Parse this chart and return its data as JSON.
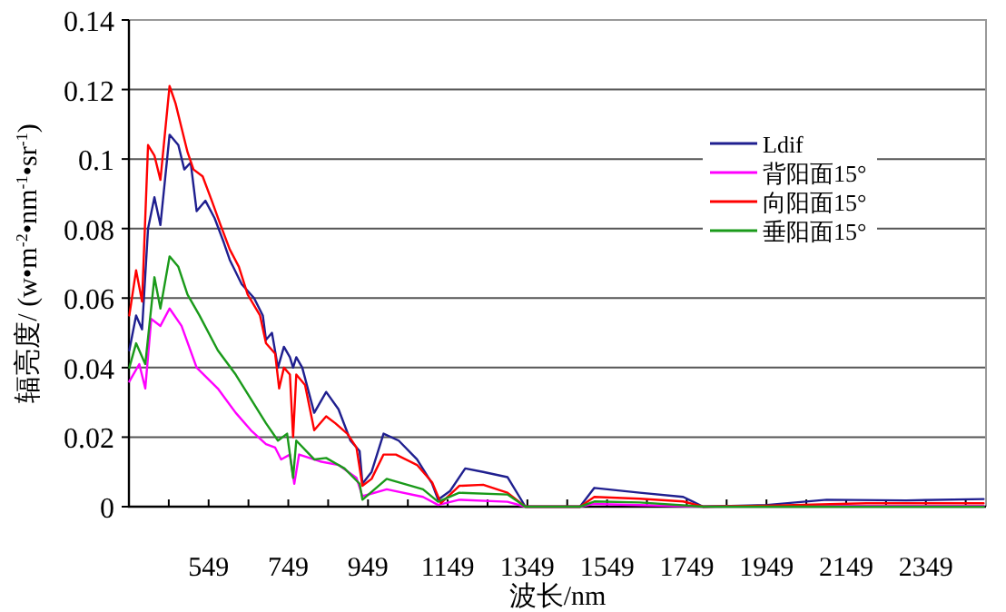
{
  "chart_data": {
    "type": "line",
    "xlabel": "波长/nm",
    "ylabel": "辐亮度/ (w•m$^{-2}$•nm$^{-1}$•sr$^{-1}$)",
    "xlim": [
      349,
      2500
    ],
    "ylim": [
      0,
      0.14
    ],
    "xticks": [
      {
        "value": 449,
        "label": null
      },
      549,
      {
        "value": 649,
        "label": null
      },
      749,
      {
        "value": 849,
        "label": null
      },
      949,
      {
        "value": 1049,
        "label": null
      },
      1149,
      {
        "value": 1249,
        "label": null
      },
      1349,
      {
        "value": 1449,
        "label": null
      },
      1549,
      {
        "value": 1649,
        "label": null
      },
      1749,
      {
        "value": 1849,
        "label": null
      },
      1949,
      {
        "value": 2049,
        "label": null
      },
      2149,
      {
        "value": 2249,
        "label": null
      },
      2349,
      {
        "value": 2449,
        "label": null
      }
    ],
    "yticks": [
      0,
      0.02,
      0.04,
      0.06,
      0.08,
      0.1,
      0.12,
      0.14
    ],
    "grid": "y",
    "legend": "top right",
    "marker": "none",
    "line_style": "solid",
    "series": [
      {
        "name": "Ldif",
        "color": "#1f1f8f",
        "x": [
          350,
          367,
          382,
          397,
          413,
          428,
          451,
          473,
          488,
          504,
          519,
          541,
          564,
          587,
          602,
          632,
          663,
          685,
          693,
          708,
          723,
          738,
          753,
          761,
          769,
          784,
          814,
          844,
          875,
          905,
          928,
          935,
          958,
          988,
          1026,
          1072,
          1110,
          1125,
          1155,
          1193,
          1238,
          1299,
          1344,
          1481,
          1517,
          1631,
          1740,
          1790,
          1950,
          2100,
          2300,
          2494
        ],
        "values": [
          0.045,
          0.055,
          0.051,
          0.08,
          0.089,
          0.081,
          0.107,
          0.104,
          0.097,
          0.099,
          0.085,
          0.088,
          0.083,
          0.076,
          0.071,
          0.064,
          0.06,
          0.055,
          0.048,
          0.05,
          0.04,
          0.046,
          0.043,
          0.04,
          0.043,
          0.04,
          0.027,
          0.033,
          0.028,
          0.019,
          0.016,
          0.0066,
          0.01,
          0.021,
          0.019,
          0.0136,
          0.0066,
          0.002,
          0.0045,
          0.011,
          0.01,
          0.0085,
          0,
          0,
          0.0054,
          0.004,
          0.0028,
          0,
          0.0005,
          0.002,
          0.0018,
          0.0022
        ]
      },
      {
        "name": "背阳面15°",
        "color": "#ff00ff",
        "x": [
          350,
          375,
          390,
          405,
          428,
          451,
          481,
          519,
          572,
          617,
          655,
          693,
          716,
          731,
          753,
          764,
          776,
          829,
          875,
          920,
          935,
          996,
          1087,
          1125,
          1178,
          1299,
          1344,
          1481,
          1517,
          1790,
          1950,
          2494
        ],
        "values": [
          0.036,
          0.041,
          0.034,
          0.054,
          0.052,
          0.057,
          0.052,
          0.04,
          0.034,
          0.027,
          0.022,
          0.018,
          0.017,
          0.0136,
          0.015,
          0.0066,
          0.015,
          0.013,
          0.012,
          0.0083,
          0.003,
          0.005,
          0.0028,
          0.0005,
          0.002,
          0.0014,
          0,
          0,
          0.0008,
          0,
          0.0002,
          0.0002
        ]
      },
      {
        "name": "向阳面15°",
        "color": "#ff0000",
        "x": [
          350,
          367,
          382,
          397,
          413,
          428,
          451,
          466,
          481,
          496,
          511,
          534,
          557,
          579,
          602,
          625,
          647,
          678,
          693,
          716,
          726,
          738,
          753,
          761,
          769,
          791,
          814,
          844,
          867,
          897,
          920,
          935,
          958,
          988,
          1019,
          1072,
          1110,
          1132,
          1178,
          1238,
          1299,
          1344,
          1481,
          1517,
          1631,
          1740,
          1790,
          1950,
          2200,
          2494
        ],
        "values": [
          0.055,
          0.068,
          0.059,
          0.104,
          0.101,
          0.094,
          0.121,
          0.116,
          0.109,
          0.102,
          0.097,
          0.095,
          0.088,
          0.081,
          0.074,
          0.069,
          0.061,
          0.055,
          0.047,
          0.044,
          0.034,
          0.04,
          0.038,
          0.02,
          0.038,
          0.035,
          0.022,
          0.026,
          0.024,
          0.021,
          0.017,
          0.006,
          0.008,
          0.015,
          0.015,
          0.012,
          0.007,
          0.001,
          0.006,
          0.0063,
          0.004,
          0,
          0,
          0.0028,
          0.0023,
          0.0015,
          0,
          0.0003,
          0.001,
          0.001
        ]
      },
      {
        "name": "垂阳面15°",
        "color": "#1a9a1a",
        "x": [
          350,
          367,
          390,
          413,
          428,
          451,
          473,
          496,
          526,
          572,
          617,
          655,
          693,
          723,
          746,
          761,
          769,
          814,
          844,
          890,
          928,
          935,
          996,
          1087,
          1125,
          1178,
          1299,
          1344,
          1481,
          1517,
          1631,
          1790,
          1950,
          2494
        ],
        "values": [
          0.04,
          0.047,
          0.041,
          0.066,
          0.057,
          0.072,
          0.069,
          0.061,
          0.055,
          0.045,
          0.038,
          0.031,
          0.024,
          0.019,
          0.021,
          0.0083,
          0.019,
          0.0136,
          0.014,
          0.011,
          0.0066,
          0.002,
          0.008,
          0.005,
          0.0014,
          0.004,
          0.0035,
          0,
          0,
          0.0015,
          0.0012,
          0,
          0,
          0
        ]
      }
    ]
  }
}
